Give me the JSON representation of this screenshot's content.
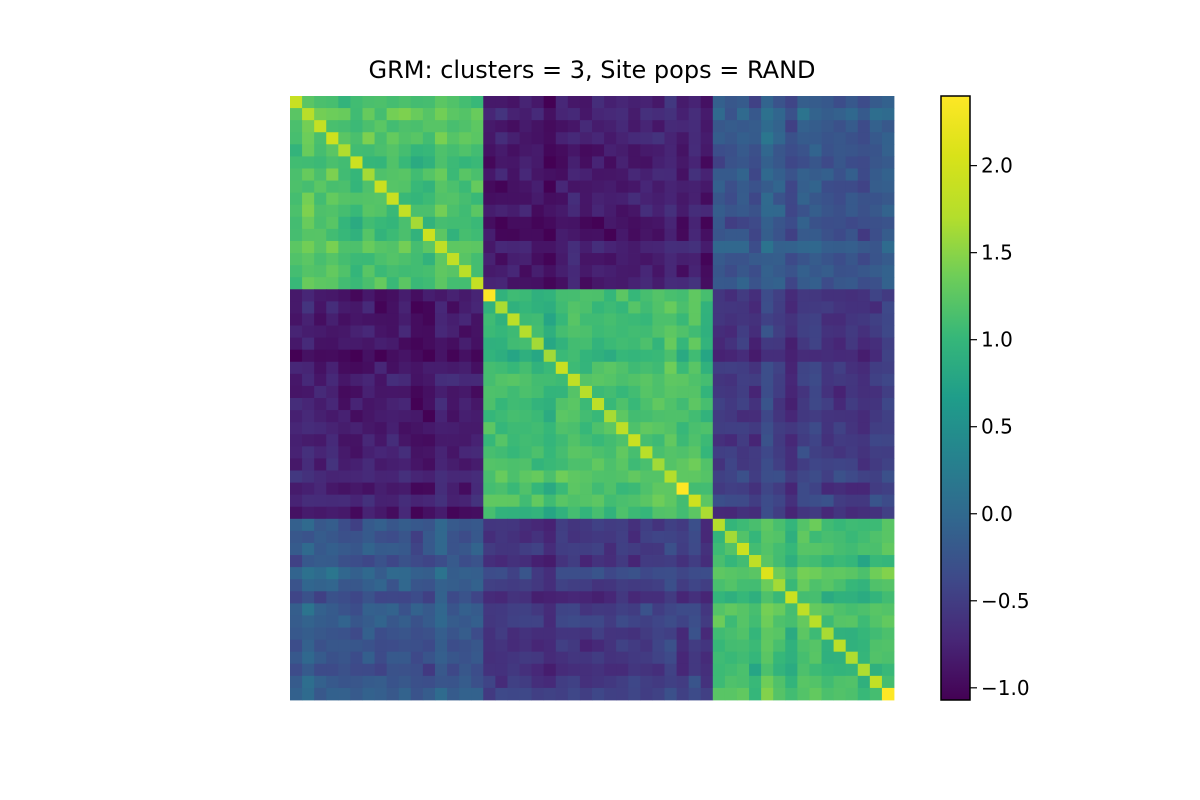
{
  "chart_data": {
    "type": "heatmap",
    "title": "GRM: clusters = 3, Site pops = RAND",
    "xlabel": "",
    "ylabel": "",
    "grid": false,
    "axes_visible": false,
    "matrix_size": 50,
    "cluster_blocks": [
      {
        "start": 0,
        "end": 15
      },
      {
        "start": 16,
        "end": 34
      },
      {
        "start": 35,
        "end": 49
      }
    ],
    "cluster_values": {
      "within_block": 1.1,
      "between_0_1": -0.85,
      "between_0_2": -0.25,
      "between_1_2": -0.55,
      "diagonal_range": [
        1.6,
        2.4
      ],
      "noise": 0.12
    },
    "notable_cells": [
      {
        "row": 16,
        "col": 16,
        "value": 2.4
      },
      {
        "row": 32,
        "col": 32,
        "value": 2.4
      },
      {
        "row": 49,
        "col": 49,
        "value": 2.4
      },
      {
        "row": 39,
        "col": 39,
        "value": 2.1
      },
      {
        "row": 8,
        "col": 8,
        "value": 1.9
      }
    ],
    "colormap": "viridis",
    "colorbar": {
      "vmin": -1.07,
      "vmax": 2.4,
      "ticks": [
        -1.0,
        -0.5,
        0.0,
        0.5,
        1.0,
        1.5,
        2.0
      ],
      "tick_labels": [
        "−1.0",
        "−0.5",
        "0.0",
        "0.5",
        "1.0",
        "1.5",
        "2.0"
      ]
    }
  }
}
